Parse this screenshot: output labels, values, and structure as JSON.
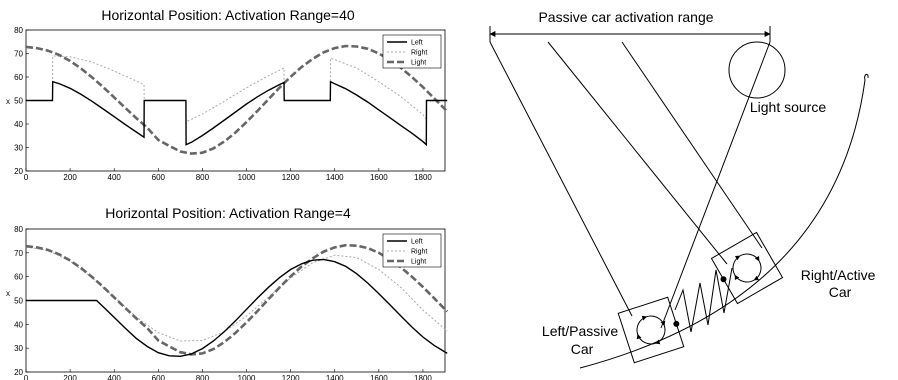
{
  "chart_data": [
    {
      "type": "line",
      "title": "Horizontal Position: Activation Range=40",
      "ylabel": "x",
      "xlim": [
        0,
        1900
      ],
      "ylim": [
        20,
        80
      ],
      "xticks": [
        "0",
        "200",
        "400",
        "600",
        "800",
        "1000",
        "1200",
        "1400",
        "1600",
        "1800"
      ],
      "yticks": [
        "20",
        "30",
        "40",
        "50",
        "60",
        "70",
        "80"
      ],
      "legend_position": "top-right",
      "series": [
        {
          "name": "Left",
          "color": "#000000",
          "style": "solid",
          "x": [
            0,
            120,
            121,
            150,
            200,
            250,
            300,
            350,
            400,
            450,
            500,
            535,
            536,
            725,
            726,
            750,
            800,
            850,
            900,
            950,
            1000,
            1050,
            1100,
            1150,
            1170,
            1171,
            1380,
            1381,
            1400,
            1450,
            1500,
            1550,
            1600,
            1650,
            1700,
            1750,
            1800,
            1815,
            1816,
            1910
          ],
          "y": [
            50,
            50,
            58,
            57.2,
            55.2,
            52.6,
            49.6,
            46.4,
            43.1,
            39.8,
            36.6,
            34.4,
            50,
            50,
            31.2,
            32.2,
            35.1,
            38.3,
            41.7,
            45.1,
            48.5,
            51.6,
            54.4,
            56.8,
            57.6,
            50,
            50,
            58,
            57.1,
            55.0,
            52.3,
            49.3,
            46.0,
            42.7,
            39.3,
            36.1,
            32.5,
            31.2,
            50,
            50
          ]
        },
        {
          "name": "Right",
          "color": "#aaaaaa",
          "style": "dotted",
          "x": [
            0,
            120,
            121,
            200,
            300,
            400,
            500,
            535,
            536,
            725,
            726,
            800,
            900,
            1000,
            1100,
            1170,
            1171,
            1380,
            1381,
            1400,
            1500,
            1600,
            1700,
            1800,
            1815,
            1816,
            1910
          ],
          "y": [
            50,
            50,
            69,
            68.6,
            66.3,
            62.5,
            58.3,
            56.8,
            50,
            50,
            41,
            44.2,
            49.7,
            55.4,
            60.6,
            63.8,
            50,
            50,
            68,
            67.4,
            63.8,
            58.0,
            51.6,
            44.0,
            42,
            50,
            50
          ]
        },
        {
          "name": "Light",
          "color": "#666666",
          "style": "dashed",
          "x": [
            0,
            50,
            100,
            150,
            200,
            250,
            300,
            350,
            400,
            450,
            500,
            550,
            600,
            650,
            700,
            750,
            800,
            850,
            900,
            950,
            1000,
            1050,
            1100,
            1150,
            1200,
            1250,
            1300,
            1350,
            1400,
            1450,
            1500,
            1550,
            1600,
            1650,
            1700,
            1750,
            1800,
            1850,
            1900,
            1910
          ],
          "y": [
            72.8,
            72.3,
            71.2,
            69.4,
            66.8,
            63.6,
            59.8,
            55.7,
            51.3,
            46.9,
            42.5,
            38.4,
            33.2,
            30.7,
            28.3,
            27.4,
            27.8,
            29.6,
            32.6,
            36.4,
            40.8,
            45.6,
            50.6,
            55.5,
            60.1,
            64.3,
            67.7,
            70.5,
            72.3,
            73.2,
            73,
            72.0,
            70.0,
            67.3,
            63.9,
            60.0,
            55.7,
            51.0,
            46.3,
            45.4
          ]
        }
      ]
    },
    {
      "type": "line",
      "title": "Horizontal Position: Activation Range=4",
      "ylabel": "x",
      "xlim": [
        0,
        1900
      ],
      "ylim": [
        20,
        80
      ],
      "xticks": [
        "0",
        "200",
        "400",
        "600",
        "800",
        "1000",
        "1200",
        "1400",
        "1600",
        "1800"
      ],
      "yticks": [
        "20",
        "30",
        "40",
        "50",
        "60",
        "70",
        "80"
      ],
      "legend_position": "top-right",
      "series": [
        {
          "name": "Left",
          "color": "#000000",
          "style": "solid",
          "x": [
            0,
            100,
            200,
            300,
            320,
            350,
            400,
            450,
            500,
            550,
            600,
            650,
            700,
            750,
            800,
            850,
            900,
            950,
            1000,
            1050,
            1100,
            1150,
            1200,
            1250,
            1300,
            1350,
            1400,
            1450,
            1500,
            1550,
            1600,
            1650,
            1700,
            1750,
            1800,
            1850,
            1900,
            1910
          ],
          "y": [
            50,
            50,
            50,
            50,
            50,
            47.4,
            42.9,
            38.4,
            34.1,
            30.7,
            28.1,
            26.8,
            26.6,
            27.6,
            29.8,
            33.0,
            37.0,
            41.5,
            46.3,
            51.1,
            55.6,
            59.6,
            63.0,
            65.4,
            66.9,
            67.2,
            66.3,
            64.3,
            61.2,
            57.3,
            52.9,
            48.2,
            43.5,
            38.9,
            34.7,
            31.2,
            28.4,
            27.9
          ]
        },
        {
          "name": "Right",
          "color": "#aaaaaa",
          "style": "dotted",
          "x": [
            0,
            100,
            200,
            300,
            400,
            500,
            600,
            700,
            800,
            900,
            1000,
            1100,
            1200,
            1300,
            1400,
            1500,
            1600,
            1700,
            1800,
            1900,
            1910
          ],
          "y": [
            72.5,
            71,
            66.5,
            59.5,
            51.5,
            43,
            36.5,
            33,
            33.2,
            37,
            43.5,
            51.5,
            59.5,
            65.8,
            69,
            68,
            63,
            55.5,
            46,
            38,
            37.2
          ]
        },
        {
          "name": "Light",
          "color": "#666666",
          "style": "dashed",
          "x": [
            0,
            50,
            100,
            150,
            200,
            250,
            300,
            350,
            400,
            450,
            500,
            550,
            600,
            650,
            700,
            750,
            800,
            850,
            900,
            950,
            1000,
            1050,
            1100,
            1150,
            1200,
            1250,
            1300,
            1350,
            1400,
            1450,
            1500,
            1550,
            1600,
            1650,
            1700,
            1750,
            1800,
            1850,
            1900,
            1910
          ],
          "y": [
            72.8,
            72.3,
            71.2,
            69.4,
            66.8,
            63.6,
            59.8,
            55.7,
            51.3,
            46.9,
            42.5,
            38.4,
            33.2,
            30.7,
            28.3,
            27.4,
            27.8,
            29.6,
            32.6,
            36.4,
            40.8,
            45.6,
            50.6,
            55.5,
            60.1,
            64.3,
            67.7,
            70.5,
            72.3,
            73.2,
            73,
            72.0,
            70.0,
            67.3,
            63.9,
            60.0,
            55.7,
            51.0,
            46.3,
            45.4
          ]
        }
      ]
    }
  ],
  "diagram": {
    "range_label": "Passive car activation range",
    "light_label": "Light source",
    "active_car_label": "Right/Active\nCar",
    "passive_car_label": "Left/Passive\nCar"
  }
}
